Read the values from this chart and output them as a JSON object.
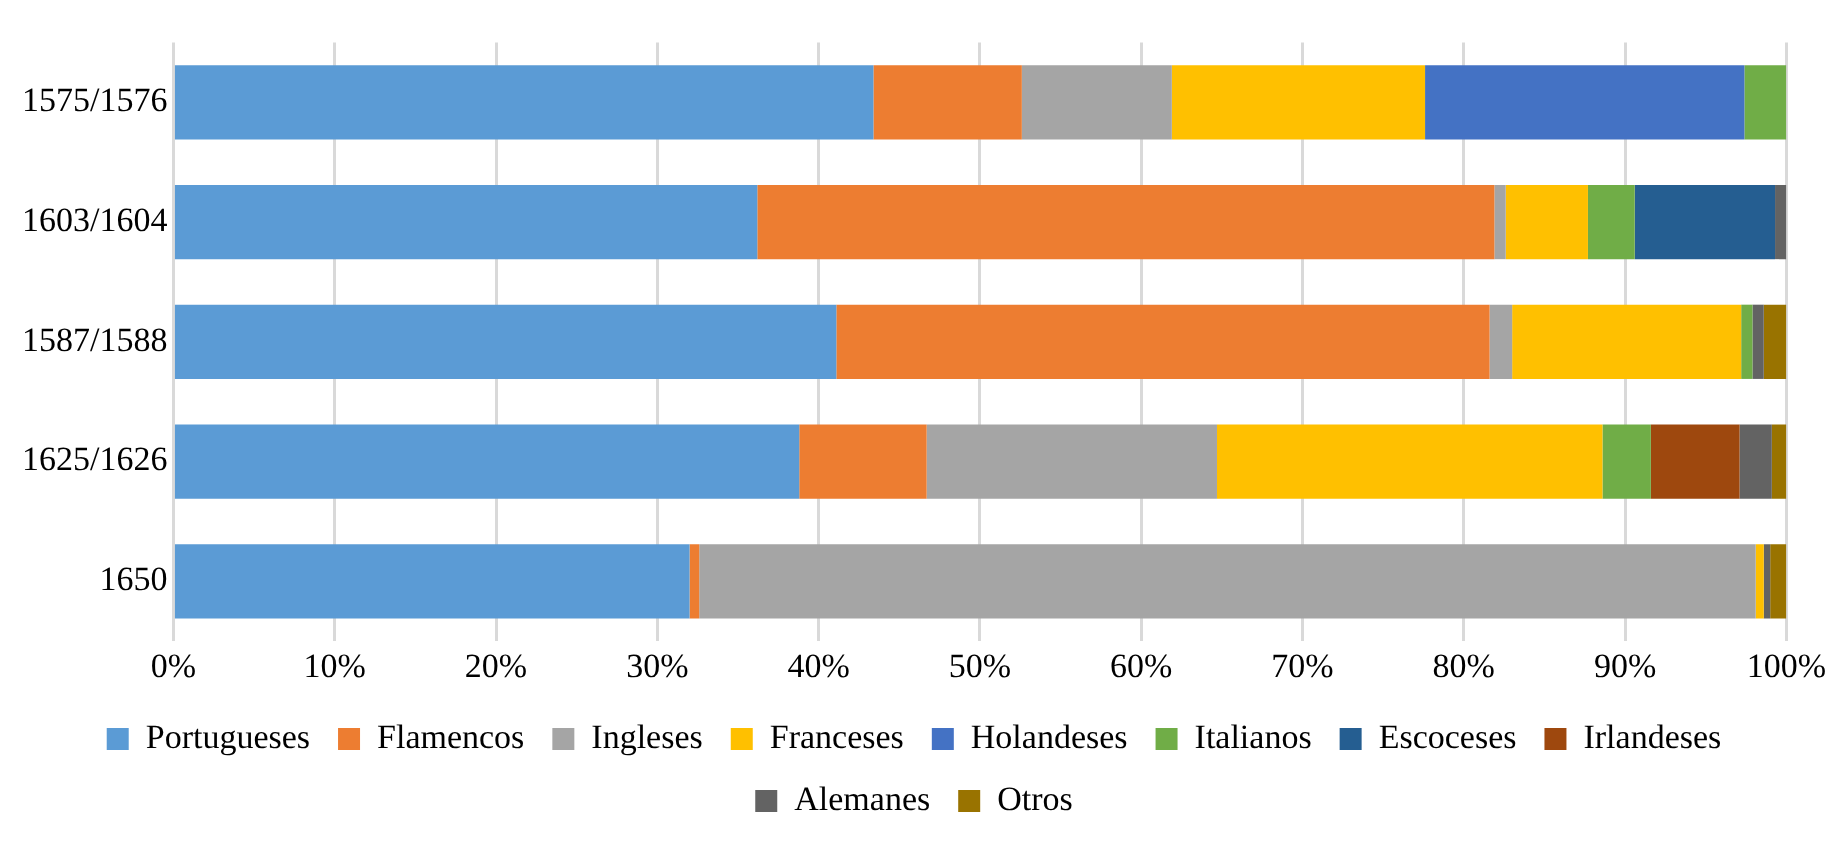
{
  "chart_data": {
    "type": "bar",
    "orientation": "horizontal",
    "stacked": true,
    "categories": [
      "1575/1576",
      "1603/1604",
      "1587/1588",
      "1625/1626",
      "1650"
    ],
    "series": [
      {
        "name": "Portugueses",
        "color": "#5b9bd5",
        "values": [
          43.4,
          36.2,
          41.1,
          38.8,
          32.0
        ]
      },
      {
        "name": "Flamencos",
        "color": "#ed7d31",
        "values": [
          9.2,
          45.7,
          40.5,
          7.9,
          0.6
        ]
      },
      {
        "name": "Ingleses",
        "color": "#a5a5a5",
        "values": [
          9.3,
          0.7,
          1.4,
          18.0,
          65.5
        ]
      },
      {
        "name": "Franceses",
        "color": "#ffc000",
        "values": [
          15.7,
          5.1,
          14.2,
          23.9,
          0.5
        ]
      },
      {
        "name": "Holandeses",
        "color": "#4472c4",
        "values": [
          19.8,
          0,
          0,
          0,
          0
        ]
      },
      {
        "name": "Italianos",
        "color": "#70ad47",
        "values": [
          2.6,
          2.9,
          0.7,
          3.0,
          0
        ]
      },
      {
        "name": "Escoceses",
        "color": "#255e91",
        "values": [
          0,
          8.7,
          0,
          0,
          0
        ]
      },
      {
        "name": "Irlandeses",
        "color": "#9e480e",
        "values": [
          0,
          0,
          0,
          5.5,
          0
        ]
      },
      {
        "name": "Alemanes",
        "color": "#636363",
        "values": [
          0,
          0.7,
          0.7,
          2.0,
          0.4
        ]
      },
      {
        "name": "Otros",
        "color": "#997300",
        "values": [
          0,
          0,
          1.4,
          0.9,
          1.0
        ]
      }
    ],
    "xlim": [
      0,
      100
    ],
    "xticks": [
      {
        "value": 0,
        "label": "0%"
      },
      {
        "value": 10,
        "label": "10%"
      },
      {
        "value": 20,
        "label": "20%"
      },
      {
        "value": 30,
        "label": "30%"
      },
      {
        "value": 40,
        "label": "40%"
      },
      {
        "value": 50,
        "label": "50%"
      },
      {
        "value": 60,
        "label": "60%"
      },
      {
        "value": 70,
        "label": "70%"
      },
      {
        "value": 80,
        "label": "80%"
      },
      {
        "value": 90,
        "label": "90%"
      },
      {
        "value": 100,
        "label": "100%"
      }
    ],
    "grid": "x",
    "legend": "bottom"
  }
}
